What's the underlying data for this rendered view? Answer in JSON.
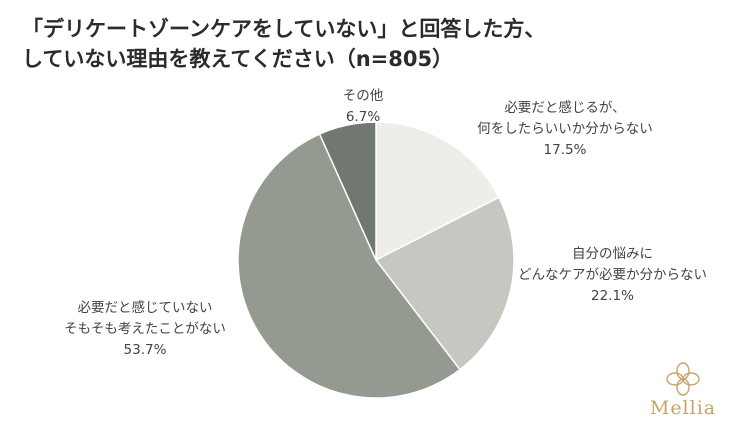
{
  "title": {
    "line1": "「デリケートゾーンケアをしていない」と回答した方、",
    "line2": "していない理由を教えてください（n=805）"
  },
  "chart_data": {
    "type": "pie",
    "slices": [
      {
        "label_line1": "必要だと感じるが、",
        "label_line2": "何をしたらいいか分からない",
        "value": 17.5,
        "value_label": "17.5%",
        "color": "#efede7"
      },
      {
        "label_line1": "自分の悩みに",
        "label_line2": "どんなケアが必要か分からない",
        "value": 22.1,
        "value_label": "22.1%",
        "color": "#c6c7c0"
      },
      {
        "label_line1": "必要だと感じていない",
        "label_line2": "そもそも考えたことがない",
        "value": 53.7,
        "value_label": "53.7%",
        "color": "#959a91"
      },
      {
        "label_line1": "その他",
        "label_line2": "",
        "value": 6.7,
        "value_label": "6.7%",
        "color": "#707870"
      }
    ],
    "start_angle_deg": 0,
    "direction": "clockwise"
  },
  "logo": {
    "text": "Mellia",
    "color": "#c9a46a",
    "icon": "flower-icon"
  }
}
